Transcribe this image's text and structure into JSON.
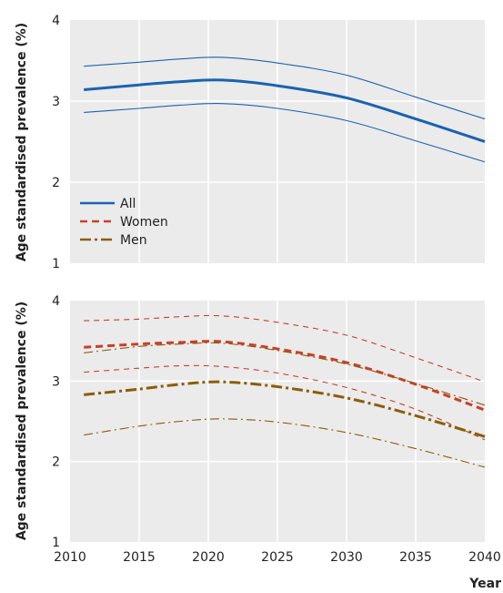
{
  "chart_data": [
    {
      "type": "line",
      "ylabel": "Age standardised prevalence (%)",
      "xlabel": "",
      "xlim": [
        2010,
        2040
      ],
      "ylim": [
        1,
        4
      ],
      "yticks": [
        "1",
        "2",
        "3",
        "4"
      ],
      "grid": true,
      "legend": {
        "position": "bottom-left"
      },
      "series": [
        {
          "name": "All",
          "color": "#1a63b0",
          "style": "solid",
          "x": [
            2011,
            2015,
            2018,
            2021,
            2025,
            2030,
            2035,
            2040
          ],
          "values": [
            3.14,
            3.2,
            3.24,
            3.26,
            3.19,
            3.04,
            2.78,
            2.5
          ],
          "lower": [
            2.86,
            2.91,
            2.95,
            2.97,
            2.91,
            2.76,
            2.51,
            2.25
          ],
          "upper": [
            3.43,
            3.48,
            3.52,
            3.54,
            3.47,
            3.32,
            3.05,
            2.78
          ]
        }
      ]
    },
    {
      "type": "line",
      "ylabel": "Age standardised prevalence (%)",
      "xlabel": "Year",
      "xlim": [
        2010,
        2040
      ],
      "ylim": [
        1,
        4
      ],
      "xticks": [
        "2010",
        "2015",
        "2020",
        "2025",
        "2030",
        "2035",
        "2040"
      ],
      "yticks": [
        "1",
        "2",
        "3",
        "4"
      ],
      "grid": true,
      "series": [
        {
          "name": "Women",
          "color": "#c8402a",
          "style": "dashed",
          "x": [
            2011,
            2015,
            2018,
            2021,
            2025,
            2030,
            2035,
            2040
          ],
          "values": [
            3.42,
            3.46,
            3.48,
            3.49,
            3.4,
            3.23,
            2.96,
            2.64
          ],
          "lower": [
            3.11,
            3.16,
            3.19,
            3.18,
            3.1,
            2.92,
            2.65,
            2.27
          ],
          "upper": [
            3.75,
            3.77,
            3.8,
            3.81,
            3.73,
            3.57,
            3.29,
            2.99
          ]
        },
        {
          "name": "Men",
          "color": "#8b5d0a",
          "style": "dashdot",
          "x": [
            2011,
            2015,
            2018,
            2021,
            2025,
            2030,
            2035,
            2040
          ],
          "values": [
            2.83,
            2.9,
            2.96,
            2.99,
            2.93,
            2.79,
            2.57,
            2.31
          ],
          "lower": [
            2.33,
            2.44,
            2.5,
            2.53,
            2.49,
            2.36,
            2.16,
            1.93
          ],
          "upper": [
            3.35,
            3.43,
            3.46,
            3.47,
            3.38,
            3.21,
            2.97,
            2.7
          ]
        }
      ]
    }
  ]
}
